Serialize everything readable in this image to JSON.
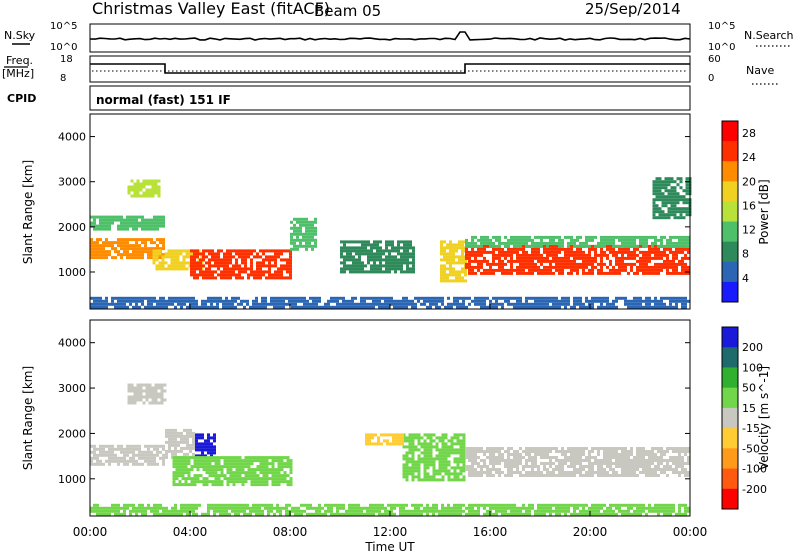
{
  "header": {
    "title": "Christmas Valley East (fitACF)",
    "beam": "Beam 05",
    "date": "25/Sep/2014"
  },
  "strip_labels": {
    "nsky": "N.Sky",
    "nsky_ticks": [
      "10^5",
      "10^0"
    ],
    "nsearch": "N.Search",
    "freq_line1": "Freq.",
    "freq_line2": "[MHz]",
    "freq_ticks": [
      "18",
      "8"
    ],
    "nave": "Nave",
    "nave_ticks": [
      "60",
      "0"
    ],
    "cpid": "CPID",
    "cpid_value": "normal (fast) 151 IF"
  },
  "colors": {
    "power_scale": [
      "#1a1aff",
      "#2a66b3",
      "#2e8a5a",
      "#4fc06a",
      "#b8e23a",
      "#f0d020",
      "#ff8c00",
      "#ff3000",
      "#ff0000"
    ],
    "velocity_scale": [
      "#1a1ad8",
      "#1f6a6a",
      "#2fb02f",
      "#72d64a",
      "#c8c8c0",
      "#ffcc33",
      "#ff9a1a",
      "#ff5a10",
      "#ff0000"
    ]
  },
  "chart_data": [
    {
      "type": "heatmap",
      "name": "power",
      "ylabel": "Slant Range [km]",
      "yticks": [
        "1000",
        "2000",
        "3000",
        "4000"
      ],
      "ylim": [
        180,
        4500
      ],
      "colorbar_label": "Power [dB]",
      "colorbar_ticks": [
        "4",
        "8",
        "12",
        "16",
        "20",
        "24",
        "28"
      ],
      "colorbar_range": [
        0,
        30
      ],
      "regions": [
        {
          "t": [
            0.0,
            3.0
          ],
          "r": [
            1300,
            1750
          ],
          "value": 22
        },
        {
          "t": [
            0.0,
            3.0
          ],
          "r": [
            1950,
            2250
          ],
          "value": 12
        },
        {
          "t": [
            1.5,
            2.8
          ],
          "r": [
            2700,
            3050
          ],
          "value": 14
        },
        {
          "t": [
            2.5,
            4.5
          ],
          "r": [
            1100,
            1500
          ],
          "value": 18
        },
        {
          "t": [
            4.0,
            8.0
          ],
          "r": [
            900,
            1500
          ],
          "value": 25
        },
        {
          "t": [
            8.0,
            9.0
          ],
          "r": [
            1500,
            2200
          ],
          "value": 10
        },
        {
          "t": [
            10.0,
            13.0
          ],
          "r": [
            1000,
            1700
          ],
          "value": 8
        },
        {
          "t": [
            14.0,
            15.0
          ],
          "r": [
            800,
            1700
          ],
          "value": 18
        },
        {
          "t": [
            15.0,
            24.0
          ],
          "r": [
            1000,
            1600
          ],
          "value": 26
        },
        {
          "t": [
            15.0,
            24.0
          ],
          "r": [
            1600,
            1800
          ],
          "value": 12
        },
        {
          "t": [
            22.5,
            24.0
          ],
          "r": [
            2200,
            3100
          ],
          "value": 8
        },
        {
          "t": [
            0.0,
            24.0
          ],
          "r": [
            200,
            450
          ],
          "value": 6
        }
      ]
    },
    {
      "type": "heatmap",
      "name": "velocity",
      "ylabel": "Slant Range [km]",
      "yticks": [
        "1000",
        "2000",
        "3000",
        "4000"
      ],
      "ylim": [
        180,
        4500
      ],
      "colorbar_label": "Velocity [m s^-1]",
      "colorbar_ticks": [
        "200",
        "100",
        "50",
        "15",
        "-15",
        "-50",
        "-100",
        "-200"
      ],
      "colorbar_range": [
        -250,
        250
      ],
      "regions": [
        {
          "t": [
            0.0,
            3.0
          ],
          "r": [
            1300,
            1750
          ],
          "value": 0
        },
        {
          "t": [
            1.5,
            3.0
          ],
          "r": [
            2700,
            3100
          ],
          "value": 0
        },
        {
          "t": [
            3.0,
            4.2
          ],
          "r": [
            1500,
            2100
          ],
          "value": 0
        },
        {
          "t": [
            4.2,
            5.0
          ],
          "r": [
            1500,
            2000
          ],
          "value": 200
        },
        {
          "t": [
            3.3,
            8.0
          ],
          "r": [
            900,
            1500
          ],
          "value": 60
        },
        {
          "t": [
            12.5,
            15.0
          ],
          "r": [
            1000,
            2000
          ],
          "value": 30
        },
        {
          "t": [
            15.0,
            24.0
          ],
          "r": [
            1100,
            1700
          ],
          "value": 0
        },
        {
          "t": [
            11.0,
            12.5
          ],
          "r": [
            1800,
            2000
          ],
          "value": -60
        },
        {
          "t": [
            0.0,
            24.0
          ],
          "r": [
            200,
            450
          ],
          "value": 30
        }
      ]
    }
  ],
  "xaxis": {
    "ticks": [
      "00:00",
      "04:00",
      "08:00",
      "12:00",
      "16:00",
      "20:00",
      "00:00"
    ],
    "label": "Time UT"
  }
}
